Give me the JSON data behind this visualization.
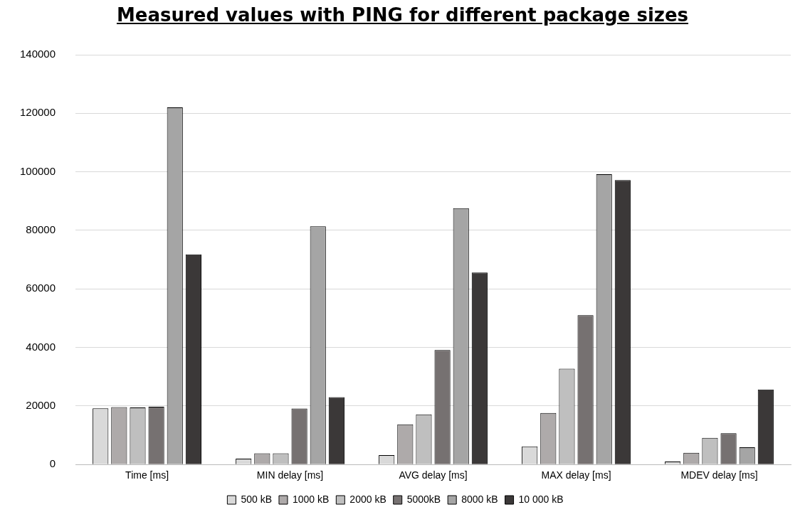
{
  "chart_data": {
    "type": "bar",
    "title": "Measured values with PING for different package sizes",
    "categories": [
      "Time [ms]",
      "MIN delay [ms]",
      "AVG delay [ms]",
      "MAX delay [ms]",
      "MDEV delay [ms]"
    ],
    "series": [
      {
        "name": "500 kB",
        "color": "#d9d9d9",
        "values": [
          19200,
          2000,
          3200,
          6200,
          1000
        ]
      },
      {
        "name": "1000 kB",
        "color": "#aeaaaa",
        "values": [
          19600,
          3800,
          13700,
          17600,
          4000
        ]
      },
      {
        "name": "2000 kB",
        "color": "#bfbfbf",
        "values": [
          19500,
          3800,
          17100,
          32700,
          9100
        ]
      },
      {
        "name": "5000kB",
        "color": "#767171",
        "values": [
          19700,
          19100,
          39100,
          51000,
          10700
        ]
      },
      {
        "name": "8000 kB",
        "color": "#a5a5a5",
        "values": [
          122000,
          81400,
          87600,
          99200,
          5900
        ]
      },
      {
        "name": "10 000 kB",
        "color": "#3b3838",
        "values": [
          71800,
          23000,
          65600,
          97200,
          25600
        ]
      }
    ],
    "ylim": [
      0,
      140000
    ],
    "yticks": [
      0,
      20000,
      40000,
      60000,
      80000,
      100000,
      120000,
      140000
    ],
    "grid": "y",
    "legend": "bottom"
  }
}
